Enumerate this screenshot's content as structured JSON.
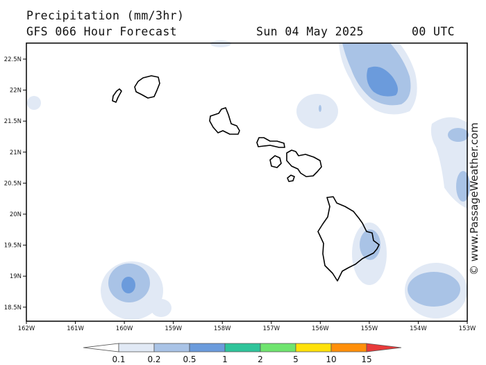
{
  "header": {
    "title": "Precipitation (mm/3hr)",
    "model": "GFS 066 Hour Forecast",
    "date": "Sun 04 May 2025",
    "time": "00 UTC"
  },
  "credit": "© www.PassageWeather.com",
  "axes": {
    "lat_labels": [
      "22.5N",
      "22N",
      "21.5N",
      "21N",
      "20.5N",
      "20N",
      "19.5N",
      "19N",
      "18.5N"
    ],
    "lon_labels": [
      "162W",
      "161W",
      "160W",
      "159W",
      "158W",
      "157W",
      "156W",
      "155W",
      "154W",
      "153W"
    ]
  },
  "legend": {
    "labels": [
      "0.1",
      "0.2",
      "0.5",
      "1",
      "2",
      "5",
      "10",
      "15"
    ],
    "colors": [
      "#ffffff",
      "#e1e9f5",
      "#a9c3e6",
      "#6b9bdc",
      "#2fc49a",
      "#6fe46f",
      "#ffe10a",
      "#ff8f0a",
      "#e83a3a"
    ]
  },
  "precip_colors": {
    "light": "#e1e9f5",
    "medium": "#a9c3e6",
    "heavy": "#6b9bdc"
  }
}
